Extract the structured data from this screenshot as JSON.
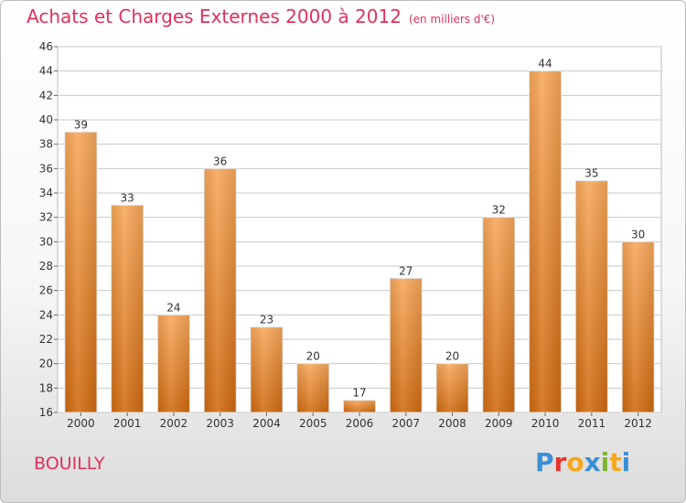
{
  "header": {
    "title": "Achats et Charges Externes 2000 à 2012",
    "unit": "(en milliers d'€)"
  },
  "footer": {
    "town": "BOUILLY",
    "logo": "Proxiti",
    "logo_colors": [
      "#3b8fd6",
      "#e8342f",
      "#f5a81c",
      "#3b8fd6",
      "#7cb82f",
      "#f5a81c",
      "#3b8fd6"
    ]
  },
  "colors": {
    "title": "#e0315a",
    "bar_light": "#f8a85a",
    "bar_dark": "#d06a10",
    "grid": "#c8c8c8",
    "axis_text": "#333333"
  },
  "chart_data": {
    "type": "bar",
    "categories": [
      "2000",
      "2001",
      "2002",
      "2003",
      "2004",
      "2005",
      "2006",
      "2007",
      "2008",
      "2009",
      "2010",
      "2011",
      "2012"
    ],
    "values": [
      39,
      33,
      24,
      36,
      23,
      20,
      17,
      27,
      20,
      32,
      44,
      35,
      30
    ],
    "ylim": [
      16,
      46
    ],
    "yticks": [
      16,
      18,
      20,
      22,
      24,
      26,
      28,
      30,
      32,
      34,
      36,
      38,
      40,
      42,
      44,
      46
    ],
    "grid": true,
    "data_labels": true
  }
}
